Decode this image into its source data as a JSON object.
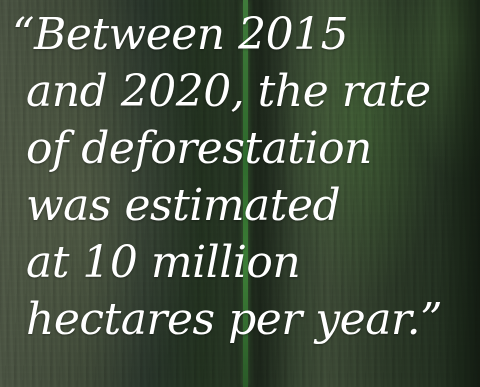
{
  "quote": {
    "lines": [
      "“Between 2015",
      "and 2020, the rate",
      "of deforestation",
      "was estimated",
      "at 10 million",
      "hectares per year.”"
    ]
  },
  "colors": {
    "text": "#ffffff",
    "vine": "#3f7a3a",
    "bark_dark": "#22311f"
  },
  "background": {
    "icon": "forest-tree-trunk-photo"
  }
}
